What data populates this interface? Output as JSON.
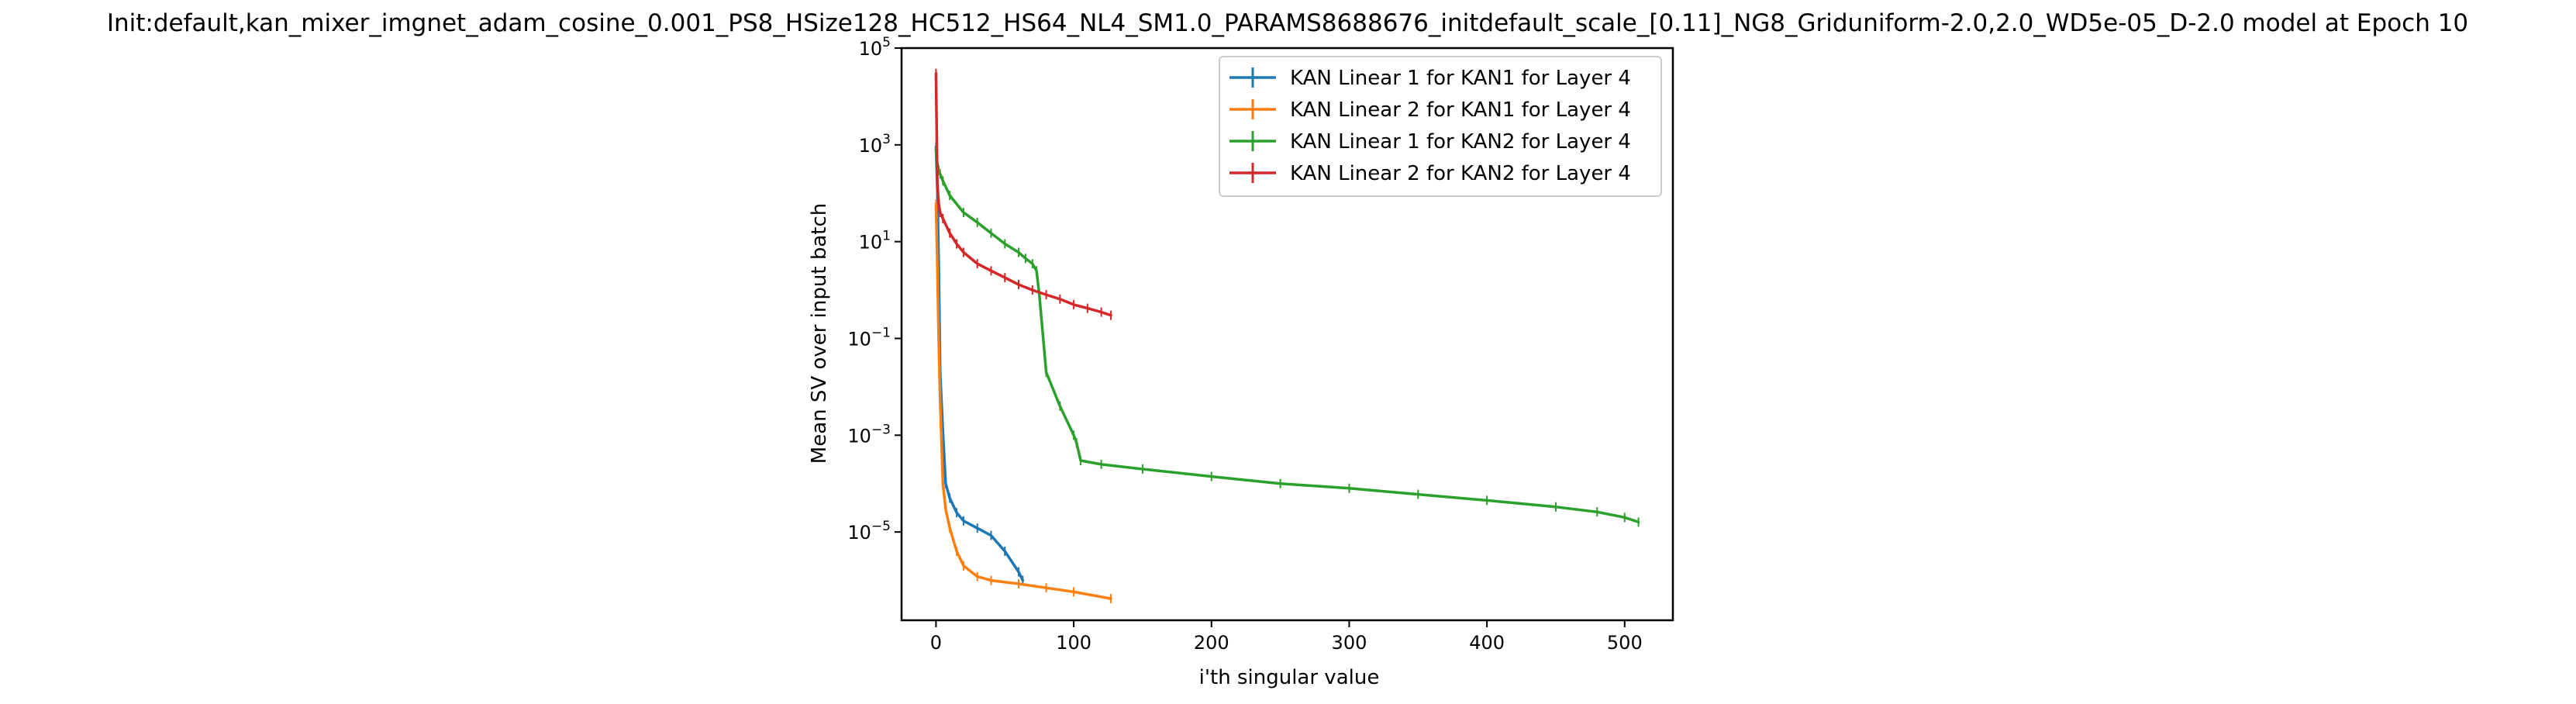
{
  "chart_data": {
    "type": "line",
    "title": "Init:default,kan_mixer_imgnet_adam_cosine_0.001_PS8_HSize128_HC512_HS64_NL4_SM1.0_PARAMS8688676_initdefault_scale_[0.11]_NG8_Griduniform-2.0,2.0_WD5e-05_D-2.0 model at Epoch 10",
    "xlabel": "i'th singular value",
    "ylabel": "Mean SV over input batch",
    "y_scale": "log",
    "xlim": [
      -25,
      535
    ],
    "ylim": [
      1.5e-07,
      100000
    ],
    "x_ticks": [
      "0",
      "100",
      "200",
      "300",
      "400",
      "500"
    ],
    "y_tick_exponents": [
      "5",
      "3",
      "1",
      "−1",
      "−3",
      "−5"
    ],
    "legend_location": "upper right",
    "grid": false,
    "series": [
      {
        "name": "KAN Linear 1 for KAN1 for Layer 4",
        "color": "#1f77b4",
        "x": [
          0,
          1,
          2,
          3,
          5,
          7,
          10,
          15,
          20,
          30,
          40,
          50,
          60,
          63
        ],
        "y": [
          900,
          120,
          3,
          0.02,
          0.0012,
          0.0001,
          5e-05,
          2.5e-05,
          1.7e-05,
          1.2e-05,
          8.5e-06,
          4e-06,
          1.5e-06,
          1e-06
        ]
      },
      {
        "name": "KAN Linear 2 for KAN1 for Layer 4",
        "color": "#ff7f0e",
        "x": [
          0,
          1,
          2,
          3,
          5,
          7,
          10,
          15,
          20,
          30,
          40,
          60,
          80,
          100,
          127
        ],
        "y": [
          60,
          3,
          0.08,
          0.005,
          0.0001,
          3e-05,
          1.2e-05,
          4e-06,
          2e-06,
          1.2e-06,
          1e-06,
          8.5e-07,
          7e-07,
          5.8e-07,
          4.2e-07
        ]
      },
      {
        "name": "KAN Linear 1 for KAN2 for Layer 4",
        "color": "#2ca02c",
        "x": [
          0,
          1,
          2,
          3,
          5,
          10,
          20,
          30,
          40,
          50,
          60,
          65,
          70,
          73,
          75,
          80,
          90,
          100,
          102,
          105,
          120,
          150,
          200,
          250,
          300,
          350,
          400,
          450,
          480,
          500,
          510
        ],
        "y": [
          800,
          400,
          300,
          250,
          180,
          90,
          40,
          25,
          15,
          9,
          6,
          4.5,
          3.5,
          2.5,
          0.8,
          0.02,
          0.004,
          0.001,
          0.0007,
          0.0003,
          0.00025,
          0.0002,
          0.00014,
          0.0001,
          8e-05,
          6e-05,
          4.5e-05,
          3.3e-05,
          2.6e-05,
          2e-05,
          1.6e-05
        ]
      },
      {
        "name": "KAN Linear 2 for KAN2 for Layer 4",
        "color": "#d62728",
        "x": [
          0,
          1,
          2,
          3,
          5,
          10,
          15,
          20,
          30,
          40,
          50,
          60,
          70,
          80,
          90,
          100,
          110,
          120,
          127
        ],
        "y": [
          30000,
          150,
          60,
          40,
          30,
          15,
          9,
          6,
          3.5,
          2.5,
          1.8,
          1.3,
          1,
          0.8,
          0.65,
          0.5,
          0.42,
          0.35,
          0.3
        ]
      }
    ]
  }
}
